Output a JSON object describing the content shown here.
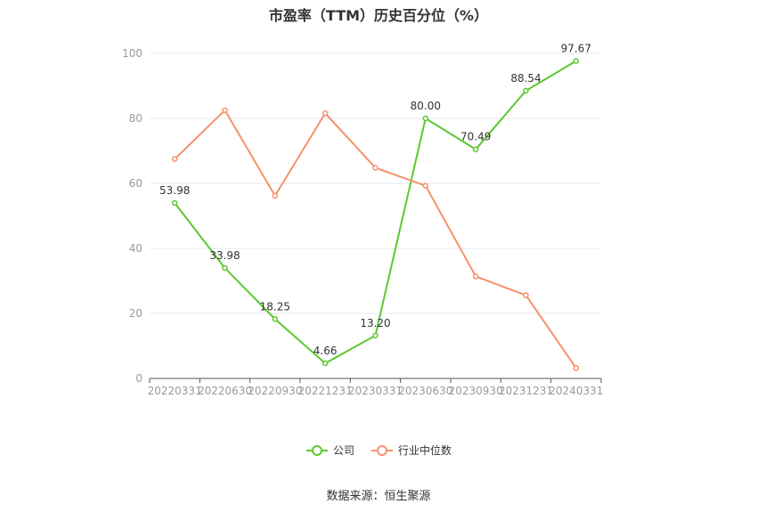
{
  "title": "市盈率（TTM）历史百分位（%）",
  "source": "数据来源：恒生聚源",
  "chart_data": {
    "type": "line",
    "categories": [
      "20220331",
      "20220630",
      "20220930",
      "20221231",
      "20230331",
      "20230630",
      "20230930",
      "20231231",
      "20240331"
    ],
    "ylim": [
      0,
      100
    ],
    "yticks": [
      0,
      20,
      40,
      60,
      80,
      100
    ],
    "grid": true,
    "legend_position": "bottom",
    "series": [
      {
        "name": "公司",
        "color": "#5cc82f",
        "values": [
          53.98,
          33.98,
          18.25,
          4.66,
          13.2,
          80.0,
          70.49,
          88.54,
          97.67
        ],
        "labels": [
          "53.98",
          "33.98",
          "18.25",
          "4.66",
          "13.20",
          "80.00",
          "70.49",
          "88.54",
          "97.67"
        ]
      },
      {
        "name": "行业中位数",
        "color": "#f5916a",
        "values": [
          67.5,
          82.5,
          56.2,
          81.6,
          64.8,
          59.3,
          31.4,
          25.6,
          3.2
        ]
      }
    ]
  }
}
